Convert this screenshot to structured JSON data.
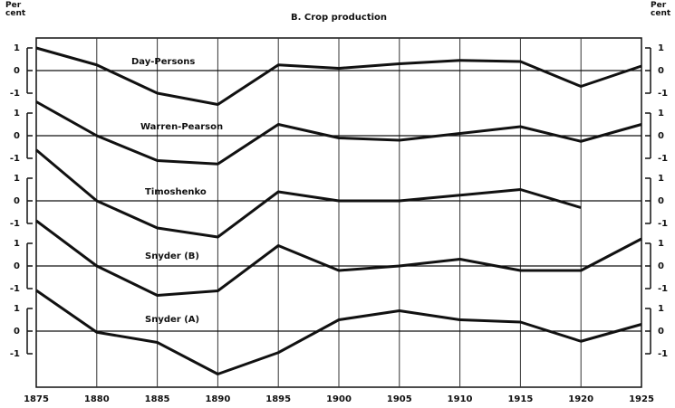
{
  "chart_data": [
    {
      "type": "line",
      "title": "B. Crop production",
      "ylabel": "Per cent",
      "y2label": "Per cent",
      "x": [
        1875,
        1880,
        1885,
        1890,
        1895,
        1900,
        1905,
        1910,
        1915,
        1920,
        1925
      ],
      "series": [
        {
          "name": "Day-Persons",
          "color": "#111111",
          "values": [
            1.0,
            0.25,
            -1.0,
            -1.5,
            0.25,
            0.1,
            0.3,
            0.45,
            0.4,
            -0.7,
            0.2
          ]
        }
      ],
      "ylim": [
        -1,
        1
      ],
      "yticks": [
        1,
        0,
        -1
      ],
      "y2ticks": [
        1,
        0,
        -1
      ],
      "zero_line": true
    },
    {
      "type": "line",
      "x": [
        1875,
        1880,
        1885,
        1890,
        1895,
        1900,
        1905,
        1910,
        1915,
        1920,
        1925
      ],
      "series": [
        {
          "name": "Warren-Pearson",
          "color": "#111111",
          "values": [
            1.5,
            0,
            -1.1,
            -1.25,
            0.5,
            -0.1,
            -0.2,
            0.1,
            0.4,
            -0.25,
            0.5
          ]
        }
      ],
      "ylim": [
        -1,
        1
      ],
      "yticks": [
        1,
        0,
        -1
      ],
      "y2ticks": [
        1,
        0,
        -1
      ],
      "zero_line": true
    },
    {
      "type": "line",
      "x": [
        1875,
        1880,
        1885,
        1890,
        1895,
        1900,
        1905,
        1910,
        1915,
        1920,
        1925
      ],
      "series": [
        {
          "name": "Timoshenko",
          "color": "#111111",
          "values": [
            2.25,
            0,
            -1.2,
            -1.6,
            0.4,
            0,
            0,
            0.25,
            0.5,
            -0.3,
            null
          ]
        }
      ],
      "ylim": [
        -1,
        1
      ],
      "yticks": [
        1,
        0,
        -1
      ],
      "y2ticks": [
        1,
        0,
        -1
      ],
      "zero_line": true
    },
    {
      "type": "line",
      "x": [
        1875,
        1880,
        1885,
        1890,
        1895,
        1900,
        1905,
        1910,
        1915,
        1920,
        1925
      ],
      "series": [
        {
          "name": "Snyder (B)",
          "color": "#111111",
          "values": [
            2.0,
            0,
            -1.3,
            -1.1,
            0.9,
            -0.2,
            0,
            0.3,
            -0.2,
            -0.2,
            1.2
          ]
        }
      ],
      "ylim": [
        -1,
        1
      ],
      "yticks": [
        1,
        0,
        -1
      ],
      "y2ticks": [
        1,
        0,
        -1
      ],
      "zero_line": true
    },
    {
      "type": "line",
      "x": [
        1875,
        1880,
        1885,
        1890,
        1895,
        1900,
        1905,
        1910,
        1915,
        1920,
        1925
      ],
      "series": [
        {
          "name": "Snyder (A)",
          "color": "#111111",
          "values": [
            1.8,
            -0.05,
            -0.5,
            -1.9,
            -0.95,
            0.5,
            0.9,
            0.5,
            0.4,
            -0.45,
            0.3
          ]
        }
      ],
      "ylim": [
        -1,
        1
      ],
      "yticks": [
        1,
        0,
        -1
      ],
      "y2ticks": [
        1,
        0,
        -1
      ],
      "zero_line": true
    }
  ]
}
